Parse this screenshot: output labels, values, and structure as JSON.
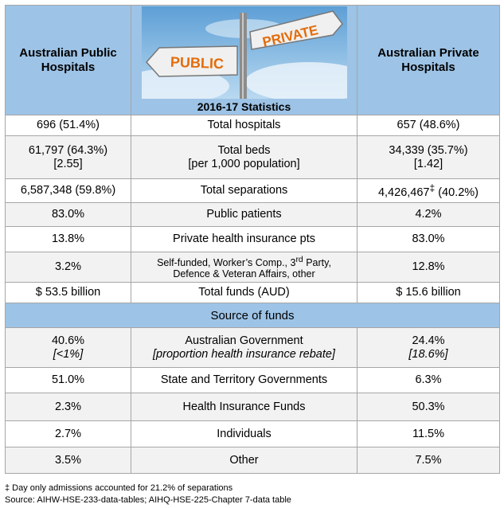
{
  "header": {
    "left_title": "Australian Public Hospitals",
    "right_title": "Australian Private Hospitals",
    "center_title": "2016-17 Statistics",
    "sign_public": "PUBLIC",
    "sign_private": "PRIVATE"
  },
  "rows": [
    {
      "left": "696 (51.4%)",
      "mid": "Total hospitals",
      "right": "657 (48.6%)"
    },
    {
      "left_l1": "61,797 (64.3%)",
      "left_l2": "[2.55]",
      "mid_l1": "Total beds",
      "mid_l2": "[per 1,000 population]",
      "right_l1": "34,339 (35.7%)",
      "right_l2": "[1.42]"
    },
    {
      "left": "6,587,348 (59.8%)",
      "mid": "Total separations",
      "right_a": "4,426,467",
      "right_mark": "‡",
      "right_b": " (40.2%)"
    },
    {
      "left": "83.0%",
      "mid": "Public patients",
      "right": "4.2%"
    },
    {
      "left": "13.8%",
      "mid": "Private health insurance pts",
      "right": "83.0%"
    },
    {
      "left": "3.2%",
      "mid_l1a": "Self-funded, Worker’s Comp., 3",
      "mid_sup": "rd",
      "mid_l1b": " Party,",
      "mid_l2": "Defence & Veteran Affairs, other",
      "right": "12.8%"
    },
    {
      "left": "$ 53.5 billion",
      "mid": "Total funds (AUD)",
      "right": "$ 15.6 billion"
    }
  ],
  "section": {
    "title": "Source of funds"
  },
  "funds": [
    {
      "left_l1": "40.6%",
      "left_l2": "[<1%]",
      "mid_l1": "Australian Government",
      "mid_l2": "[proportion health insurance rebate]",
      "right_l1": "24.4%",
      "right_l2": "[18.6%]"
    },
    {
      "left": "51.0%",
      "mid": "State and Territory Governments",
      "right": "6.3%"
    },
    {
      "left": "2.3%",
      "mid": "Health Insurance Funds",
      "right": "50.3%"
    },
    {
      "left": "2.7%",
      "mid": "Individuals",
      "right": "11.5%"
    },
    {
      "left": "3.5%",
      "mid": "Other",
      "right": "7.5%"
    }
  ],
  "footnotes": {
    "note": "‡ Day only admissions accounted for 21.2% of separations",
    "source": "Source: AIHW-HSE-233-data-tables; AIHQ-HSE-225-Chapter 7-data table"
  },
  "colors": {
    "header_bg": "#9dc3e6",
    "row_shade": "#f2f2f2",
    "sign_orange": "#e46c0a"
  }
}
